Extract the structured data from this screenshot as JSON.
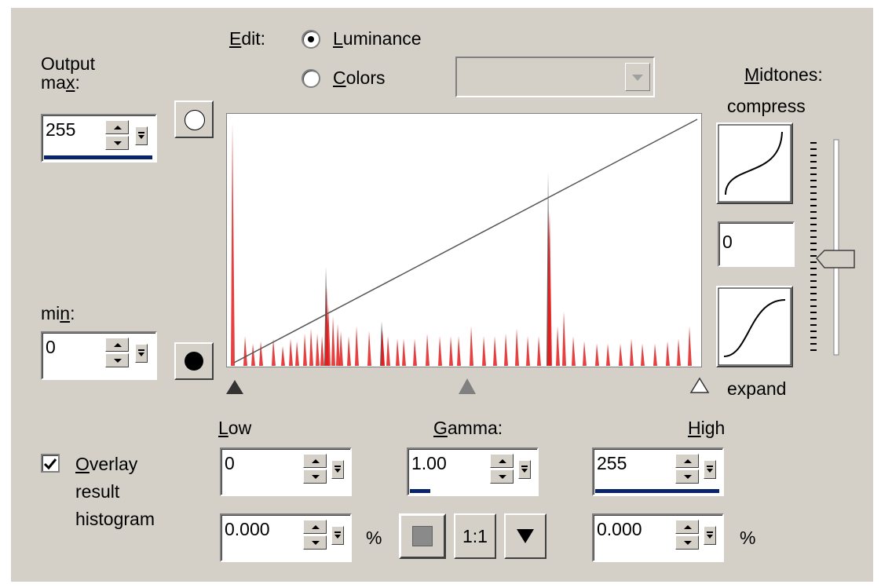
{
  "output": {
    "max_label": "Output max:",
    "max_label_line1": "Output",
    "max_label_line2_pre": "ma",
    "max_label_line2_u": "x",
    "max_label_line2_post": ":",
    "max_value": "255",
    "min_label_pre": "mi",
    "min_label_u": "n",
    "min_label_post": ":",
    "min_value": "0"
  },
  "edit": {
    "label_u": "E",
    "label_rest": "dit:",
    "options": [
      {
        "u": "L",
        "rest": "uminance",
        "selected": true
      },
      {
        "u": "C",
        "rest": "olors",
        "selected": false
      }
    ],
    "channel_dropdown_value": ""
  },
  "midtones": {
    "label_u": "M",
    "label_rest": "idtones:",
    "compress_label": "compress",
    "expand_label": "expand",
    "value": "0",
    "slider_level": 0.5
  },
  "levels": {
    "low_label_u": "L",
    "low_label_rest": "ow",
    "low_value": "0",
    "low_percent": "0.000",
    "gamma_label_u": "G",
    "gamma_label_rest": "amma:",
    "gamma_value": "1.00",
    "high_label_u": "H",
    "high_label_rest": "igh",
    "high_value": "255",
    "high_percent": "0.000",
    "percent_symbol": "%",
    "one_to_one_label": "1:1"
  },
  "overlay": {
    "checked": true,
    "label_u": "O",
    "label_line1_rest": "verlay",
    "label_line2": "result",
    "label_line3": "histogram"
  },
  "histogram": {
    "bars": [
      {
        "x": 2,
        "h": 0.98,
        "dark": false
      },
      {
        "x": 18,
        "h": 0.12,
        "dark": false
      },
      {
        "x": 28,
        "h": 0.09,
        "dark": false
      },
      {
        "x": 38,
        "h": 0.1,
        "dark": false
      },
      {
        "x": 54,
        "h": 0.11,
        "dark": false
      },
      {
        "x": 66,
        "h": 0.08,
        "dark": false
      },
      {
        "x": 76,
        "h": 0.11,
        "dark": false
      },
      {
        "x": 84,
        "h": 0.1,
        "dark": false
      },
      {
        "x": 94,
        "h": 0.13,
        "dark": false
      },
      {
        "x": 102,
        "h": 0.15,
        "dark": false
      },
      {
        "x": 110,
        "h": 0.13,
        "dark": false
      },
      {
        "x": 116,
        "h": 0.12,
        "dark": false
      },
      {
        "x": 121,
        "h": 0.4,
        "dark": true
      },
      {
        "x": 124,
        "h": 0.25,
        "dark": false
      },
      {
        "x": 130,
        "h": 0.2,
        "dark": false
      },
      {
        "x": 136,
        "h": 0.17,
        "dark": false
      },
      {
        "x": 140,
        "h": 0.14,
        "dark": false
      },
      {
        "x": 150,
        "h": 0.12,
        "dark": false
      },
      {
        "x": 160,
        "h": 0.16,
        "dark": false
      },
      {
        "x": 176,
        "h": 0.14,
        "dark": false
      },
      {
        "x": 192,
        "h": 0.18,
        "dark": true
      },
      {
        "x": 200,
        "h": 0.12,
        "dark": false
      },
      {
        "x": 212,
        "h": 0.11,
        "dark": false
      },
      {
        "x": 220,
        "h": 0.11,
        "dark": false
      },
      {
        "x": 234,
        "h": 0.11,
        "dark": false
      },
      {
        "x": 250,
        "h": 0.13,
        "dark": false
      },
      {
        "x": 266,
        "h": 0.12,
        "dark": false
      },
      {
        "x": 280,
        "h": 0.12,
        "dark": false
      },
      {
        "x": 290,
        "h": 0.12,
        "dark": false
      },
      {
        "x": 306,
        "h": 0.16,
        "dark": false
      },
      {
        "x": 322,
        "h": 0.12,
        "dark": false
      },
      {
        "x": 336,
        "h": 0.12,
        "dark": false
      },
      {
        "x": 350,
        "h": 0.13,
        "dark": false
      },
      {
        "x": 364,
        "h": 0.15,
        "dark": false
      },
      {
        "x": 378,
        "h": 0.12,
        "dark": false
      },
      {
        "x": 392,
        "h": 0.12,
        "dark": false
      },
      {
        "x": 404,
        "h": 0.78,
        "dark": true
      },
      {
        "x": 406,
        "h": 0.62,
        "dark": false
      },
      {
        "x": 416,
        "h": 0.16,
        "dark": false
      },
      {
        "x": 424,
        "h": 0.22,
        "dark": false
      },
      {
        "x": 436,
        "h": 0.12,
        "dark": false
      },
      {
        "x": 450,
        "h": 0.1,
        "dark": false
      },
      {
        "x": 466,
        "h": 0.09,
        "dark": false
      },
      {
        "x": 480,
        "h": 0.09,
        "dark": false
      },
      {
        "x": 496,
        "h": 0.09,
        "dark": false
      },
      {
        "x": 510,
        "h": 0.11,
        "dark": false
      },
      {
        "x": 524,
        "h": 0.09,
        "dark": false
      },
      {
        "x": 540,
        "h": 0.09,
        "dark": false
      },
      {
        "x": 556,
        "h": 0.1,
        "dark": false
      },
      {
        "x": 570,
        "h": 0.11,
        "dark": false
      },
      {
        "x": 584,
        "h": 0.16,
        "dark": false
      }
    ]
  }
}
